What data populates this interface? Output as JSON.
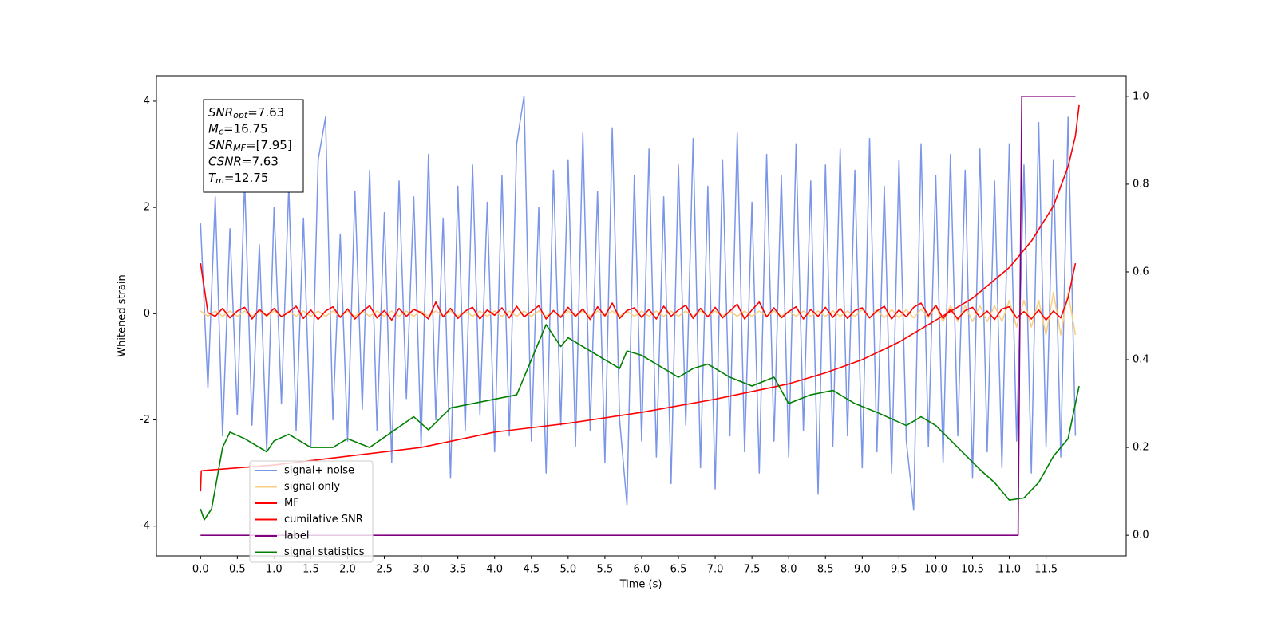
{
  "chart_data": {
    "type": "line",
    "xlabel": "Time (s)",
    "ylabel": "Whitened strain",
    "xlim": [
      -0.6,
      12.59
    ],
    "ylim": [
      -4.56,
      4.48
    ],
    "y2lim": [
      -0.047,
      1.047
    ],
    "xticks": [
      {
        "value": 0,
        "label": "0.0"
      },
      0.5,
      {
        "value": 1,
        "label": "1.0"
      },
      1.5,
      {
        "value": 2,
        "label": "2.0"
      },
      2.5,
      {
        "value": 3,
        "label": "3.0"
      },
      3.5,
      {
        "value": 4,
        "label": "4.0"
      },
      4.5,
      {
        "value": 5,
        "label": "5.0"
      },
      5.5,
      {
        "value": 6,
        "label": "6.0"
      },
      6.5,
      {
        "value": 7,
        "label": "7.0"
      },
      7.5,
      {
        "value": 8,
        "label": "8.0"
      },
      8.5,
      {
        "value": 9,
        "label": "9.0"
      },
      9.5,
      {
        "value": 10,
        "label": "10.0"
      },
      10.5,
      {
        "value": 11,
        "label": "11.0"
      },
      11.5
    ],
    "yticks": [
      -4,
      -2,
      0,
      2,
      4
    ],
    "y2ticks": [
      {
        "value": 0,
        "label": "0.0"
      },
      0.2,
      0.4,
      0.6,
      0.8,
      {
        "value": 1,
        "label": "1.0"
      }
    ],
    "legend": "lower left",
    "annotation": [
      {
        "symbol": "SNR",
        "subscript": "opt",
        "value": "=7.63"
      },
      {
        "symbol": "M",
        "subscript": "c",
        "value": "=16.75"
      },
      {
        "symbol": "SNR",
        "subscript": "MF",
        "value": "=[7.95]"
      },
      {
        "symbol": "CSNR",
        "subscript": "",
        "value": "=7.63"
      },
      {
        "symbol": "T",
        "subscript": "m",
        "value": "=12.75"
      }
    ],
    "x": [
      0,
      0.1,
      0.2,
      0.3,
      0.4,
      0.5,
      0.6,
      0.7,
      0.8,
      0.9,
      1,
      1.1,
      1.2,
      1.3,
      1.4,
      1.5,
      1.6,
      1.7,
      1.8,
      1.9,
      2,
      2.1,
      2.2,
      2.3,
      2.4,
      2.5,
      2.6,
      2.7,
      2.8,
      2.9,
      3,
      3.1,
      3.2,
      3.3,
      3.4,
      3.5,
      3.6,
      3.7,
      3.8,
      3.9,
      4,
      4.1,
      4.2,
      4.3,
      4.4,
      4.5,
      4.6,
      4.7,
      4.8,
      4.9,
      5,
      5.1,
      5.2,
      5.3,
      5.4,
      5.5,
      5.6,
      5.7,
      5.8,
      5.9,
      6,
      6.1,
      6.2,
      6.3,
      6.4,
      6.5,
      6.6,
      6.7,
      6.8,
      6.9,
      7,
      7.1,
      7.2,
      7.3,
      7.4,
      7.5,
      7.6,
      7.7,
      7.8,
      7.9,
      8,
      8.1,
      8.2,
      8.3,
      8.4,
      8.5,
      8.6,
      8.7,
      8.8,
      8.9,
      9,
      9.1,
      9.2,
      9.3,
      9.4,
      9.5,
      9.6,
      9.7,
      9.8,
      9.9,
      10,
      10.1,
      10.2,
      10.3,
      10.4,
      10.5,
      10.6,
      10.7,
      10.8,
      10.9,
      11,
      11.1,
      11.2,
      11.3,
      11.4,
      11.5,
      11.6,
      11.7,
      11.8,
      11.9
    ],
    "series": [
      {
        "name": "signal+ noise",
        "color": "#7b96e8",
        "values": [
          1.7,
          -1.4,
          2.2,
          -2.3,
          1.6,
          -1.9,
          2.5,
          -2.1,
          1.3,
          -2.6,
          2.0,
          -1.7,
          2.4,
          -2.2,
          1.8,
          -2.5,
          2.9,
          3.7,
          -2.0,
          1.5,
          -2.4,
          2.3,
          -1.8,
          2.7,
          -2.2,
          1.9,
          -2.8,
          2.5,
          -1.6,
          2.2,
          -2.5,
          3.0,
          -2.0,
          1.8,
          -3.1,
          2.4,
          -2.2,
          2.8,
          -1.9,
          2.1,
          -2.6,
          2.6,
          -2.3,
          3.2,
          4.1,
          -2.4,
          2.0,
          -3.0,
          2.7,
          -2.1,
          2.9,
          -2.5,
          3.4,
          -2.2,
          2.3,
          -2.8,
          3.5,
          -2.0,
          -3.6,
          2.6,
          -2.4,
          3.1,
          -2.7,
          2.2,
          -3.2,
          2.8,
          -2.1,
          3.3,
          -2.9,
          2.4,
          -3.3,
          2.9,
          -2.3,
          3.4,
          -2.6,
          2.1,
          -3.0,
          3.0,
          -2.4,
          2.6,
          -2.7,
          3.2,
          -2.2,
          2.5,
          -3.4,
          2.8,
          -2.5,
          3.1,
          -2.3,
          2.7,
          -2.9,
          3.3,
          -2.6,
          2.4,
          -3.0,
          2.9,
          -2.4,
          -3.7,
          3.2,
          -2.5,
          2.6,
          -2.8,
          3.0,
          -2.3,
          2.7,
          -3.1,
          3.1,
          -2.6,
          2.5,
          -2.9,
          3.2,
          -2.4,
          2.8,
          -3.0,
          3.6,
          -2.5,
          2.9,
          -2.7,
          3.7,
          -2.3
        ]
      },
      {
        "name": "signal only",
        "color": "#f7cf85",
        "values": [
          0.05,
          -0.05,
          0.05,
          -0.05,
          0.05,
          -0.05,
          0.05,
          -0.05,
          0.05,
          -0.05,
          0.05,
          -0.05,
          0.05,
          -0.05,
          0.05,
          -0.05,
          0.05,
          -0.05,
          0.05,
          -0.05,
          0.05,
          -0.05,
          0.05,
          -0.05,
          0.05,
          -0.05,
          0.05,
          -0.05,
          0.05,
          -0.05,
          0.05,
          -0.05,
          0.05,
          -0.05,
          0.05,
          -0.05,
          0.05,
          -0.05,
          0.05,
          -0.05,
          0.05,
          -0.05,
          0.05,
          -0.05,
          0.05,
          -0.05,
          0.05,
          -0.05,
          0.05,
          -0.05,
          0.05,
          -0.05,
          0.05,
          -0.05,
          0.05,
          -0.05,
          0.05,
          -0.05,
          0.05,
          -0.05,
          0.05,
          -0.05,
          0.05,
          -0.05,
          0.05,
          -0.05,
          0.05,
          -0.05,
          0.05,
          -0.05,
          0.05,
          -0.05,
          0.05,
          -0.05,
          0.05,
          -0.05,
          0.05,
          -0.05,
          0.05,
          -0.05,
          0.05,
          -0.05,
          0.05,
          -0.05,
          0.05,
          -0.05,
          0.05,
          -0.05,
          0.05,
          -0.05,
          0.08,
          -0.08,
          0.08,
          -0.08,
          0.08,
          -0.08,
          0.08,
          -0.08,
          0.08,
          -0.08,
          0.15,
          -0.15,
          0.15,
          -0.15,
          0.15,
          -0.15,
          0.15,
          -0.15,
          0.15,
          -0.15,
          0.25,
          -0.25,
          0.25,
          -0.25,
          0.25,
          -0.4,
          0.4,
          -0.4,
          0.4,
          -0.4
        ]
      },
      {
        "name": "MF",
        "color": "#ff0000",
        "values": [
          0.95,
          0.02,
          -0.05,
          0.1,
          -0.08,
          0.05,
          0.12,
          -0.1,
          0.08,
          -0.04,
          0.1,
          -0.06,
          0.03,
          0.14,
          -0.09,
          0.07,
          -0.11,
          0.05,
          0.13,
          -0.07,
          0.09,
          -0.1,
          0.04,
          0.15,
          -0.08,
          0.06,
          -0.12,
          0.1,
          -0.05,
          0.08,
          0.02,
          -0.1,
          0.22,
          -0.06,
          0.1,
          -0.09,
          0.05,
          0.12,
          -0.1,
          0.07,
          -0.03,
          0.11,
          -0.08,
          0.14,
          -0.06,
          0.04,
          0.15,
          -0.1,
          0.06,
          -0.07,
          0.12,
          -0.05,
          0.09,
          -0.11,
          0.13,
          -0.04,
          0.2,
          -0.09,
          0.06,
          0.11,
          -0.07,
          0.08,
          -0.1,
          0.14,
          -0.05,
          0.07,
          0.16,
          -0.09,
          0.1,
          -0.06,
          0.12,
          -0.08,
          0.05,
          0.18,
          -0.1,
          0.07,
          0.22,
          -0.06,
          0.11,
          -0.08,
          0.04,
          0.13,
          -0.1,
          0.08,
          -0.05,
          0.12,
          -0.07,
          0.1,
          -0.09,
          0.06,
          0.11,
          -0.08,
          0.05,
          0.14,
          -0.1,
          0.07,
          -0.06,
          0.12,
          0.2,
          -0.04,
          0.16,
          -0.09,
          0.08,
          -0.1,
          0.06,
          0.12,
          -0.07,
          0.05,
          -0.11,
          0.09,
          0.13,
          -0.08,
          0.04,
          -0.1,
          0.07,
          -0.12,
          0.05,
          -0.08,
          0.3,
          0.95
        ]
      },
      {
        "name": "cumilative SNR",
        "color": "#ff0000",
        "axis": "y2",
        "x": [
          0,
          0.01,
          1,
          2,
          3,
          4,
          5,
          6,
          7,
          8,
          8.5,
          9,
          9.5,
          10,
          10.5,
          11,
          11.3,
          11.6,
          11.8,
          11.9,
          11.95
        ],
        "values": [
          0.1,
          0.147,
          0.16,
          0.18,
          0.2,
          0.235,
          0.255,
          0.28,
          0.31,
          0.345,
          0.37,
          0.4,
          0.44,
          0.49,
          0.54,
          0.61,
          0.67,
          0.75,
          0.84,
          0.91,
          0.98
        ]
      },
      {
        "name": "label",
        "color": "#800080",
        "axis": "y2",
        "x": [
          0,
          11.12,
          11.17,
          11.9
        ],
        "values": [
          0,
          0,
          1,
          1
        ]
      },
      {
        "name": "signal statistics",
        "color": "#008000",
        "axis": "y2",
        "x": [
          0,
          0.05,
          0.15,
          0.3,
          0.4,
          0.6,
          0.8,
          0.9,
          1.0,
          1.2,
          1.5,
          1.8,
          2.0,
          2.3,
          2.6,
          2.9,
          3.1,
          3.4,
          3.7,
          4.0,
          4.3,
          4.5,
          4.7,
          4.9,
          5.0,
          5.3,
          5.5,
          5.7,
          5.8,
          6.0,
          6.3,
          6.5,
          6.7,
          6.9,
          7.2,
          7.5,
          7.8,
          8.0,
          8.3,
          8.6,
          8.9,
          9.2,
          9.6,
          9.8,
          10.0,
          10.3,
          10.6,
          10.8,
          11.0,
          11.2,
          11.4,
          11.6,
          11.8,
          11.95
        ],
        "values": [
          0.06,
          0.035,
          0.06,
          0.2,
          0.235,
          0.22,
          0.2,
          0.19,
          0.215,
          0.23,
          0.2,
          0.2,
          0.22,
          0.2,
          0.235,
          0.27,
          0.24,
          0.29,
          0.3,
          0.31,
          0.32,
          0.4,
          0.48,
          0.43,
          0.45,
          0.42,
          0.4,
          0.38,
          0.42,
          0.41,
          0.38,
          0.36,
          0.38,
          0.39,
          0.36,
          0.34,
          0.36,
          0.3,
          0.32,
          0.33,
          0.3,
          0.28,
          0.25,
          0.27,
          0.25,
          0.2,
          0.15,
          0.12,
          0.08,
          0.085,
          0.12,
          0.18,
          0.22,
          0.34
        ]
      }
    ]
  }
}
